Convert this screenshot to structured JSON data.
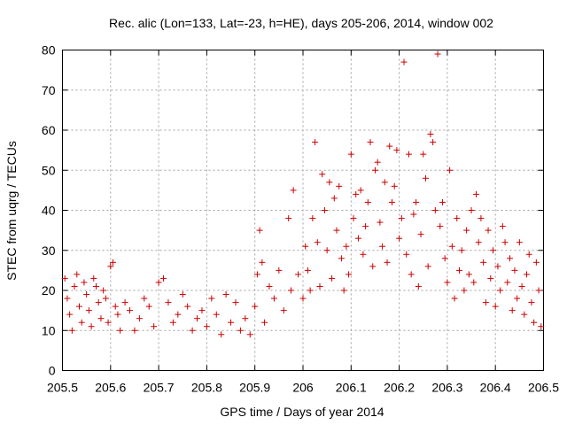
{
  "chart_data": {
    "type": "scatter",
    "title": "Rec. alic (Lon=133, Lat=-23, h=HE), days 205-206, 2014, window 002",
    "xlabel": "GPS time / Days of year 2014",
    "ylabel": "STEC from uqrg / TECUs",
    "xlim": [
      205.5,
      206.5
    ],
    "ylim": [
      0,
      80
    ],
    "xticks": [
      "205.5",
      "205.6",
      "205.7",
      "205.8",
      "205.9",
      "206",
      "206.1",
      "206.2",
      "206.3",
      "206.4",
      "206.5"
    ],
    "yticks": [
      "0",
      "10",
      "20",
      "30",
      "40",
      "50",
      "60",
      "70",
      "80"
    ],
    "grid": true,
    "marker": "+",
    "color": "#cc0000",
    "series": [
      {
        "name": "STEC",
        "points": [
          [
            205.505,
            23
          ],
          [
            205.51,
            18
          ],
          [
            205.515,
            14
          ],
          [
            205.52,
            10
          ],
          [
            205.525,
            21
          ],
          [
            205.53,
            24
          ],
          [
            205.535,
            16
          ],
          [
            205.54,
            12
          ],
          [
            205.545,
            22
          ],
          [
            205.55,
            19
          ],
          [
            205.555,
            15
          ],
          [
            205.56,
            11
          ],
          [
            205.565,
            23
          ],
          [
            205.57,
            21
          ],
          [
            205.575,
            17
          ],
          [
            205.58,
            13
          ],
          [
            205.585,
            20
          ],
          [
            205.59,
            18
          ],
          [
            205.595,
            12
          ],
          [
            205.6,
            26
          ],
          [
            205.605,
            27
          ],
          [
            205.61,
            16
          ],
          [
            205.615,
            14
          ],
          [
            205.62,
            10
          ],
          [
            205.63,
            17
          ],
          [
            205.64,
            15
          ],
          [
            205.65,
            10
          ],
          [
            205.66,
            13
          ],
          [
            205.67,
            18
          ],
          [
            205.68,
            16
          ],
          [
            205.69,
            11
          ],
          [
            205.7,
            22
          ],
          [
            205.71,
            23
          ],
          [
            205.72,
            17
          ],
          [
            205.73,
            12
          ],
          [
            205.74,
            14
          ],
          [
            205.75,
            19
          ],
          [
            205.76,
            16
          ],
          [
            205.77,
            10
          ],
          [
            205.78,
            13
          ],
          [
            205.79,
            15
          ],
          [
            205.8,
            11
          ],
          [
            205.81,
            18
          ],
          [
            205.82,
            14
          ],
          [
            205.83,
            9
          ],
          [
            205.84,
            19
          ],
          [
            205.85,
            12
          ],
          [
            205.86,
            17
          ],
          [
            205.87,
            10
          ],
          [
            205.88,
            13
          ],
          [
            205.89,
            9
          ],
          [
            205.9,
            16
          ],
          [
            205.905,
            24
          ],
          [
            205.91,
            35
          ],
          [
            205.915,
            27
          ],
          [
            205.92,
            12
          ],
          [
            205.93,
            21
          ],
          [
            205.94,
            18
          ],
          [
            205.95,
            25
          ],
          [
            205.96,
            15
          ],
          [
            205.97,
            38
          ],
          [
            205.975,
            20
          ],
          [
            205.98,
            45
          ],
          [
            205.99,
            24
          ],
          [
            206.0,
            18
          ],
          [
            206.005,
            31
          ],
          [
            206.01,
            25
          ],
          [
            206.015,
            20
          ],
          [
            206.02,
            38
          ],
          [
            206.025,
            57
          ],
          [
            206.03,
            32
          ],
          [
            206.035,
            21
          ],
          [
            206.04,
            49
          ],
          [
            206.045,
            40
          ],
          [
            206.05,
            30
          ],
          [
            206.055,
            47
          ],
          [
            206.06,
            23
          ],
          [
            206.065,
            43
          ],
          [
            206.07,
            35
          ],
          [
            206.075,
            46
          ],
          [
            206.08,
            28
          ],
          [
            206.085,
            20
          ],
          [
            206.09,
            31
          ],
          [
            206.095,
            24
          ],
          [
            206.1,
            54
          ],
          [
            206.105,
            38
          ],
          [
            206.11,
            44
          ],
          [
            206.115,
            33
          ],
          [
            206.12,
            45
          ],
          [
            206.125,
            29
          ],
          [
            206.13,
            36
          ],
          [
            206.135,
            42
          ],
          [
            206.14,
            57
          ],
          [
            206.145,
            26
          ],
          [
            206.15,
            50
          ],
          [
            206.155,
            52
          ],
          [
            206.16,
            37
          ],
          [
            206.165,
            31
          ],
          [
            206.17,
            47
          ],
          [
            206.175,
            27
          ],
          [
            206.18,
            56
          ],
          [
            206.185,
            42
          ],
          [
            206.19,
            46
          ],
          [
            206.195,
            55
          ],
          [
            206.2,
            33
          ],
          [
            206.205,
            38
          ],
          [
            206.21,
            77
          ],
          [
            206.215,
            29
          ],
          [
            206.22,
            54
          ],
          [
            206.225,
            24
          ],
          [
            206.23,
            39
          ],
          [
            206.235,
            42
          ],
          [
            206.24,
            21
          ],
          [
            206.245,
            34
          ],
          [
            206.25,
            54
          ],
          [
            206.255,
            48
          ],
          [
            206.26,
            26
          ],
          [
            206.265,
            59
          ],
          [
            206.27,
            57
          ],
          [
            206.275,
            40
          ],
          [
            206.28,
            79
          ],
          [
            206.285,
            36
          ],
          [
            206.29,
            42
          ],
          [
            206.295,
            28
          ],
          [
            206.3,
            22
          ],
          [
            206.305,
            50
          ],
          [
            206.31,
            31
          ],
          [
            206.315,
            18
          ],
          [
            206.32,
            38
          ],
          [
            206.325,
            25
          ],
          [
            206.33,
            30
          ],
          [
            206.335,
            20
          ],
          [
            206.34,
            35
          ],
          [
            206.345,
            24
          ],
          [
            206.35,
            40
          ],
          [
            206.355,
            22
          ],
          [
            206.36,
            44
          ],
          [
            206.365,
            32
          ],
          [
            206.37,
            38
          ],
          [
            206.375,
            27
          ],
          [
            206.38,
            17
          ],
          [
            206.385,
            35
          ],
          [
            206.39,
            23
          ],
          [
            206.395,
            30
          ],
          [
            206.4,
            16
          ],
          [
            206.405,
            26
          ],
          [
            206.41,
            20
          ],
          [
            206.415,
            36
          ],
          [
            206.42,
            32
          ],
          [
            206.425,
            22
          ],
          [
            206.43,
            28
          ],
          [
            206.435,
            15
          ],
          [
            206.44,
            25
          ],
          [
            206.445,
            18
          ],
          [
            206.45,
            32
          ],
          [
            206.455,
            21
          ],
          [
            206.46,
            14
          ],
          [
            206.465,
            24
          ],
          [
            206.47,
            29
          ],
          [
            206.475,
            17
          ],
          [
            206.48,
            12
          ],
          [
            206.485,
            27
          ],
          [
            206.49,
            20
          ],
          [
            206.495,
            11
          ]
        ]
      }
    ]
  }
}
